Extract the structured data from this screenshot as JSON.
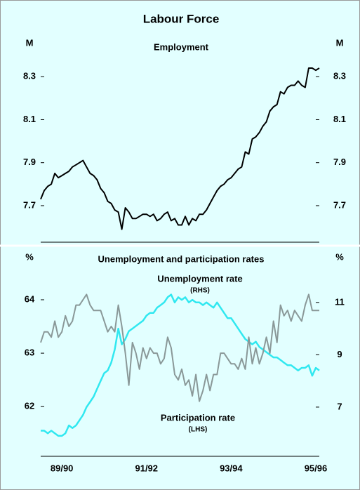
{
  "title": "Labour Force",
  "chart_data": [
    {
      "type": "line",
      "title": "Employment",
      "y_label": "M",
      "y2_label": "M",
      "ylim": [
        7.53,
        8.5
      ],
      "yticks": [
        7.7,
        7.9,
        8.1,
        8.3
      ],
      "y2lim": [
        7.53,
        8.5
      ],
      "y2ticks": [
        7.7,
        7.9,
        8.1,
        8.3
      ],
      "series": [
        {
          "color": "#000000",
          "values": [
            7.73,
            7.77,
            7.79,
            7.8,
            7.85,
            7.83,
            7.84,
            7.85,
            7.86,
            7.88,
            7.89,
            7.9,
            7.91,
            7.88,
            7.85,
            7.84,
            7.82,
            7.78,
            7.76,
            7.72,
            7.71,
            7.68,
            7.67,
            7.59,
            7.69,
            7.67,
            7.64,
            7.64,
            7.65,
            7.66,
            7.66,
            7.65,
            7.66,
            7.63,
            7.64,
            7.66,
            7.67,
            7.63,
            7.64,
            7.61,
            7.61,
            7.65,
            7.61,
            7.64,
            7.63,
            7.66,
            7.66,
            7.68,
            7.71,
            7.74,
            7.77,
            7.79,
            7.8,
            7.82,
            7.83,
            7.85,
            7.87,
            7.88,
            7.95,
            7.94,
            8.01,
            8.02,
            8.04,
            8.07,
            8.09,
            8.14,
            8.16,
            8.17,
            8.23,
            8.22,
            8.25,
            8.26,
            8.26,
            8.28,
            8.26,
            8.25,
            8.34,
            8.34,
            8.33,
            8.34
          ]
        }
      ]
    },
    {
      "type": "line",
      "title": "Unemployment and participation rates",
      "y_label": "%",
      "y2_label": "%",
      "ylim": [
        61.07,
        64.88
      ],
      "yticks": [
        62,
        63,
        64
      ],
      "y2lim": [
        5.12,
        12.9
      ],
      "y2ticks": [
        7,
        9,
        11
      ],
      "categories": [
        null,
        null,
        null,
        null,
        null,
        null,
        "89/90",
        null,
        null,
        null,
        null,
        null,
        null,
        null,
        null,
        null,
        null,
        null,
        null,
        null,
        null,
        null,
        null,
        null,
        null,
        null,
        null,
        null,
        null,
        null,
        "91/92",
        null,
        null,
        null,
        null,
        null,
        null,
        null,
        null,
        null,
        null,
        null,
        null,
        null,
        null,
        null,
        null,
        null,
        null,
        null,
        null,
        null,
        null,
        null,
        "93/94",
        null,
        null,
        null,
        null,
        null,
        null,
        null,
        null,
        null,
        null,
        null,
        null,
        null,
        null,
        null,
        null,
        null,
        null,
        null,
        null,
        null,
        null,
        null,
        "95/96",
        null
      ],
      "series": [
        {
          "name": "Unemployment rate",
          "note": "(RHS)",
          "axis": "y2",
          "color": "#30e8f0",
          "values": [
            6.1,
            6.1,
            6.0,
            6.1,
            6.0,
            5.9,
            5.9,
            6.0,
            6.3,
            6.2,
            6.3,
            6.5,
            6.7,
            7.0,
            7.2,
            7.4,
            7.7,
            8.0,
            8.3,
            8.4,
            8.7,
            9.2,
            10.0,
            9.4,
            9.6,
            9.9,
            10.0,
            10.1,
            10.2,
            10.3,
            10.5,
            10.6,
            10.6,
            10.8,
            10.9,
            11.0,
            11.2,
            11.3,
            11.0,
            11.2,
            11.1,
            11.2,
            11.0,
            11.1,
            11.0,
            11.0,
            10.9,
            11.0,
            10.9,
            10.8,
            11.0,
            10.8,
            10.6,
            10.4,
            10.4,
            10.2,
            10.0,
            9.8,
            9.6,
            9.5,
            9.4,
            9.5,
            9.3,
            9.2,
            9.1,
            9.0,
            8.9,
            8.9,
            8.8,
            8.7,
            8.6,
            8.6,
            8.5,
            8.4,
            8.5,
            8.5,
            8.6,
            8.2,
            8.5,
            8.4
          ]
        },
        {
          "name": "Participation rate",
          "note": "(LHS)",
          "color": "#8a9898",
          "values": [
            63.2,
            63.4,
            63.4,
            63.3,
            63.6,
            63.3,
            63.4,
            63.7,
            63.5,
            63.6,
            63.9,
            63.9,
            64.0,
            64.1,
            63.9,
            63.8,
            63.8,
            63.8,
            63.6,
            63.4,
            63.5,
            63.4,
            63.9,
            63.5,
            63.0,
            62.4,
            63.2,
            63.0,
            62.7,
            63.1,
            62.9,
            63.1,
            63.0,
            63.0,
            62.8,
            62.9,
            63.3,
            63.1,
            62.6,
            62.5,
            62.7,
            62.4,
            62.5,
            62.2,
            62.6,
            62.1,
            62.3,
            62.6,
            62.3,
            62.6,
            62.6,
            63.0,
            63.0,
            62.9,
            62.8,
            62.8,
            62.7,
            62.9,
            62.7,
            63.3,
            62.8,
            63.1,
            62.8,
            63.0,
            63.3,
            63.0,
            63.6,
            63.2,
            63.9,
            63.7,
            63.8,
            63.6,
            63.8,
            63.7,
            63.6,
            63.9,
            64.1,
            63.8,
            63.8,
            63.8
          ]
        }
      ]
    }
  ]
}
